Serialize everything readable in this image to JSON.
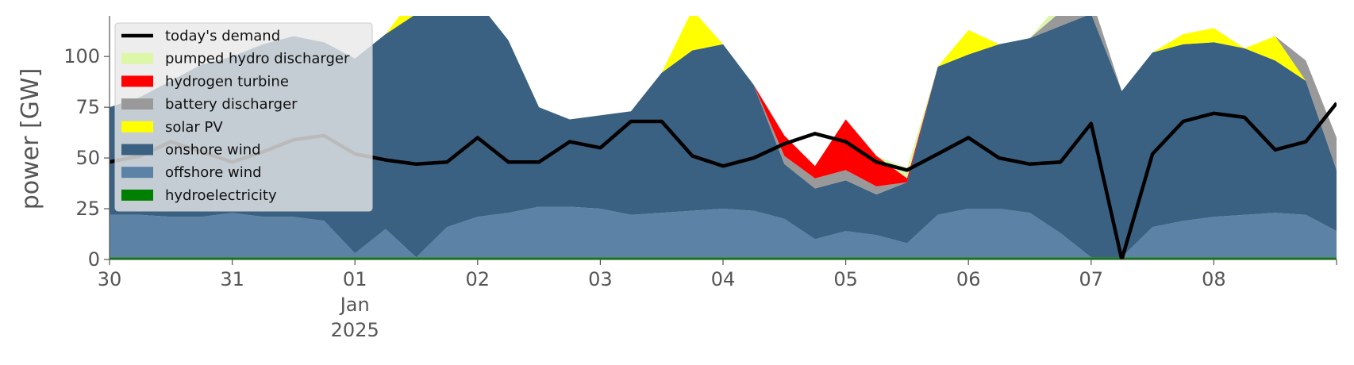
{
  "chart_data": {
    "type": "area",
    "stacked": true,
    "ylabel": "power [GW]",
    "ylim": [
      0,
      120
    ],
    "yticks": [
      0,
      25,
      50,
      75,
      100
    ],
    "xlim": [
      "2024-12-30T00:00",
      "2025-01-09T00:00"
    ],
    "xticks": [
      {
        "date": "2024-12-30",
        "label": "30"
      },
      {
        "date": "2024-12-31",
        "label": "31"
      },
      {
        "date": "2025-01-01",
        "label": "01",
        "sublabel1": "Jan",
        "sublabel2": "2025"
      },
      {
        "date": "2025-01-02",
        "label": "02"
      },
      {
        "date": "2025-01-03",
        "label": "03"
      },
      {
        "date": "2025-01-04",
        "label": "04"
      },
      {
        "date": "2025-01-05",
        "label": "05"
      },
      {
        "date": "2025-01-06",
        "label": "06"
      },
      {
        "date": "2025-01-07",
        "label": "07"
      },
      {
        "date": "2025-01-08",
        "label": "08"
      }
    ],
    "legend": {
      "position": "top-left",
      "entries": [
        {
          "name": "today's demand",
          "color": "#000000",
          "kind": "line"
        },
        {
          "name": "pumped hydro discharger",
          "color": "#ddf7a9",
          "kind": "patch"
        },
        {
          "name": "hydrogen turbine",
          "color": "#ff0000",
          "kind": "patch"
        },
        {
          "name": "battery discharger",
          "color": "#999999",
          "kind": "patch"
        },
        {
          "name": "solar PV",
          "color": "#ffff00",
          "kind": "patch"
        },
        {
          "name": "onshore wind",
          "color": "#3b6182",
          "kind": "patch"
        },
        {
          "name": "offshore wind",
          "color": "#5c82a6",
          "kind": "patch"
        },
        {
          "name": "hydroelectricity",
          "color": "#008000",
          "kind": "patch"
        }
      ]
    },
    "x_day_offsets": [
      0,
      0.25,
      0.5,
      0.75,
      1,
      1.25,
      1.5,
      1.75,
      2,
      2.25,
      2.5,
      2.75,
      3,
      3.25,
      3.5,
      3.75,
      4,
      4.25,
      4.5,
      4.75,
      5,
      5.25,
      5.5,
      5.75,
      6,
      6.25,
      6.5,
      6.75,
      7,
      7.25,
      7.5,
      7.75,
      8,
      8.25,
      8.5,
      8.75,
      9,
      9.25,
      9.5,
      9.75,
      10
    ],
    "series": [
      {
        "name": "hydroelectricity",
        "color": "#008000",
        "values": [
          1,
          1,
          1,
          1,
          1,
          1,
          1,
          1,
          1,
          1,
          1,
          1,
          1,
          1,
          1,
          1,
          1,
          1,
          1,
          1,
          1,
          1,
          1,
          1,
          1,
          1,
          1,
          1,
          1,
          1,
          1,
          1,
          1,
          1,
          1,
          1,
          1,
          1,
          1,
          1,
          1
        ]
      },
      {
        "name": "offshore wind",
        "color": "#5c82a6",
        "values": [
          21,
          21,
          20,
          20,
          22,
          20,
          20,
          18,
          2,
          14,
          0,
          15,
          20,
          22,
          25,
          25,
          24,
          21,
          22,
          23,
          24,
          23,
          19,
          9,
          13,
          11,
          7,
          21,
          24,
          24,
          22,
          12,
          0,
          0,
          15,
          18,
          20,
          21,
          22,
          21,
          13
        ]
      },
      {
        "name": "onshore wind",
        "color": "#3b6182",
        "values": [
          53,
          58,
          67,
          75,
          77,
          85,
          89,
          88,
          96,
          96,
          120,
          110,
          106,
          85,
          49,
          43,
          46,
          51,
          69,
          79,
          81,
          62,
          27,
          25,
          25,
          20,
          30,
          73,
          76,
          81,
          86,
          102,
          120,
          82,
          86,
          87,
          86,
          82,
          75,
          66,
          30
        ]
      },
      {
        "name": "solar PV",
        "color": "#ffff00",
        "values": [
          0,
          0,
          0,
          0,
          0,
          0,
          0,
          0,
          0,
          0,
          10,
          0,
          0,
          0,
          0,
          0,
          0,
          0,
          0,
          20,
          0,
          0,
          0,
          0,
          0,
          0,
          0,
          0,
          12,
          0,
          0,
          0,
          0,
          0,
          0,
          5,
          7,
          0,
          12,
          0,
          0
        ]
      },
      {
        "name": "battery discharger",
        "color": "#999999",
        "values": [
          0,
          0,
          0,
          0,
          0,
          0,
          0,
          0,
          0,
          0,
          0,
          0,
          0,
          0,
          0,
          0,
          0,
          0,
          0,
          0,
          0,
          0,
          4,
          5,
          5,
          4,
          0,
          0,
          0,
          0,
          0,
          7,
          8,
          0,
          0,
          0,
          0,
          0,
          0,
          10,
          16
        ]
      },
      {
        "name": "hydrogen turbine",
        "color": "#ff0000",
        "values": [
          0,
          0,
          0,
          0,
          0,
          0,
          0,
          0,
          0,
          0,
          0,
          0,
          0,
          0,
          0,
          0,
          0,
          0,
          0,
          0,
          0,
          0,
          10,
          6,
          25,
          15,
          2,
          0,
          0,
          0,
          0,
          0,
          0,
          0,
          0,
          0,
          0,
          0,
          0,
          0,
          0
        ]
      },
      {
        "name": "pumped hydro discharger",
        "color": "#ddf7a9",
        "values": [
          0,
          0,
          0,
          0,
          0,
          0,
          0,
          0,
          0,
          0,
          0,
          0,
          0,
          0,
          0,
          0,
          0,
          0,
          0,
          0,
          0,
          0,
          0,
          0,
          0,
          0,
          5,
          0,
          0,
          0,
          0,
          5,
          0,
          0,
          0,
          0,
          0,
          0,
          0,
          0,
          0
        ]
      }
    ],
    "demand": {
      "name": "today's demand",
      "color": "#000000",
      "values": [
        48,
        51,
        58,
        53,
        48,
        53,
        59,
        61,
        52,
        49,
        47,
        48,
        60,
        48,
        48,
        58,
        55,
        68,
        68,
        51,
        46,
        50,
        57,
        62,
        58,
        48,
        44,
        52,
        60,
        50,
        47,
        48,
        67,
        0,
        52,
        68,
        72,
        70,
        54,
        58,
        77
      ]
    }
  }
}
